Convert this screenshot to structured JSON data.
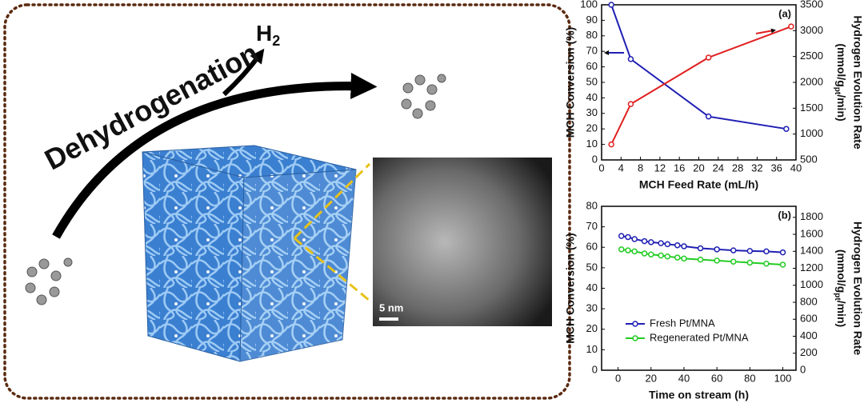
{
  "illustration": {
    "title": "Dehydrogenation",
    "gas": "H",
    "gas_sub": "2",
    "scale_bar": "5 nm"
  },
  "chart_data": [
    {
      "type": "line",
      "panel": "(a)",
      "xlabel": "MCH Feed Rate (mL/h)",
      "ylabel": "MCH Conversion (%)",
      "y2label": {
        "text": "Hydrogen Evolution Rate",
        "unit": [
          "(mmol/g",
          "pt",
          "/min)"
        ]
      },
      "xlim": [
        0,
        40
      ],
      "xticks": [
        0,
        4,
        8,
        12,
        16,
        20,
        24,
        28,
        32,
        36,
        40
      ],
      "ylim": [
        0,
        100
      ],
      "yticks": [
        0,
        10,
        20,
        30,
        40,
        50,
        60,
        70,
        80,
        90,
        100
      ],
      "y2lim": [
        500,
        3500
      ],
      "y2ticks": [
        500,
        1000,
        1500,
        2000,
        2500,
        3000,
        3500
      ],
      "series": [
        {
          "color": "#1f1fb4",
          "x": [
            2,
            6,
            22,
            38
          ],
          "values": [
            100,
            65,
            28,
            20
          ]
        },
        {
          "color": "#e02020",
          "axis": "y2",
          "x": [
            2,
            6,
            22,
            39
          ],
          "values": [
            800,
            1580,
            2480,
            3080
          ]
        }
      ]
    },
    {
      "type": "line",
      "panel": "(b)",
      "xlabel": "Time on stream (h)",
      "ylabel": "MCH Conversion (%)",
      "y2label": {
        "text": "Hydrogen Evolution Rate",
        "unit": [
          "(mmol/g",
          "pt",
          "/min)"
        ]
      },
      "xlim": [
        -10,
        108
      ],
      "xticks": [
        0,
        20,
        40,
        60,
        80,
        100
      ],
      "ylim": [
        0,
        80
      ],
      "yticks": [
        0,
        10,
        20,
        30,
        40,
        50,
        60,
        70,
        80
      ],
      "y2lim": [
        0,
        1930
      ],
      "y2ticks": [
        0,
        200,
        400,
        600,
        800,
        1000,
        1200,
        1400,
        1600,
        1800
      ],
      "x": [
        2,
        6,
        10,
        16,
        20,
        26,
        30,
        36,
        40,
        50,
        60,
        70,
        80,
        90,
        100
      ],
      "series": [
        {
          "name": "Fresh Pt/MNA",
          "color": "#1f1fb4",
          "values": [
            65.5,
            65,
            64,
            63,
            62.5,
            62,
            61.5,
            61,
            60.5,
            59.5,
            59,
            58.5,
            58.2,
            58,
            57.5
          ]
        },
        {
          "name": "Regenerated Pt/MNA",
          "color": "#22cc22",
          "values": [
            59,
            58.5,
            58,
            57,
            56.5,
            56,
            55.5,
            55,
            54.5,
            54,
            53.5,
            53,
            52.5,
            52,
            51.5
          ]
        }
      ]
    }
  ]
}
